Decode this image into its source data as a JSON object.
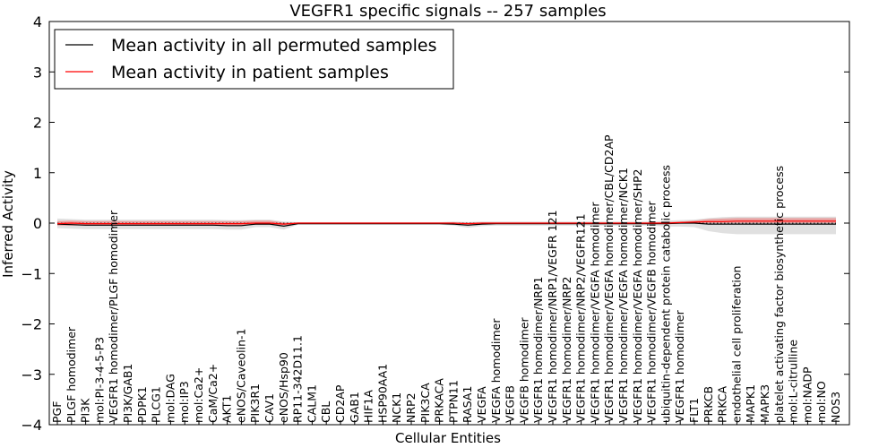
{
  "chart_data": {
    "type": "line",
    "title": "VEGFR1 specific signals -- 257 samples",
    "xlabel": "Cellular Entities",
    "ylabel": "Inferred Activity",
    "ylim": [
      -4,
      4
    ],
    "yticks": [
      -4,
      -3,
      -2,
      -1,
      0,
      1,
      2,
      3,
      4
    ],
    "legend_position": "top-left",
    "categories": [
      "PGF",
      "PLGF homodimer",
      "PI3K",
      "mol:PI-3-4-5-P3",
      "VEGFR1 homodimer/PLGF homodimer",
      "PI3K/GAB1",
      "PDPK1",
      "PLCG1",
      "mol:DAG",
      "mol:IP3",
      "mol:Ca2+",
      "CaM/Ca2+",
      "AKT1",
      "eNOS/Caveolin-1",
      "PIK3R1",
      "CAV1",
      "eNOS/Hsp90",
      "RP11-342D11.1",
      "CALM1",
      "CBL",
      "CD2AP",
      "GAB1",
      "HIF1A",
      "HSP90AA1",
      "NCK1",
      "NRP2",
      "PIK3CA",
      "PRKACA",
      "PTPN11",
      "RASA1",
      "VEGFA",
      "VEGFA homodimer",
      "VEGFB",
      "VEGFB homodimer",
      "VEGFR1 homodimer/NRP1",
      "VEGFR1 homodimer/NRP1/VEGFR 121",
      "VEGFR1 homodimer/NRP2",
      "VEGFR1 homodimer/NRP2/VEGFR121",
      "VEGFR1 homodimer/VEGFA homodimer",
      "VEGFR1 homodimer/VEGFA homodimer/CBL/CD2AP",
      "VEGFR1 homodimer/VEGFA homodimer/NCK1",
      "VEGFR1 homodimer/VEGFA homodimer/SHP2",
      "VEGFR1 homodimer/VEGFB homodimer",
      "ubiquitin-dependent protein catabolic process",
      "VEGFR1 homodimer",
      "FLT1",
      "PRKCB",
      "PRKCA",
      "endothelial cell proliferation",
      "MAPK1",
      "MAPK3",
      "platelet activating factor biosynthetic process",
      "mol:L-citrulline",
      "mol:NADP",
      "mol:NO",
      "NOS3"
    ],
    "series": [
      {
        "name": "Mean activity in all permuted samples",
        "color": "#000000",
        "values": [
          -0.02,
          -0.03,
          -0.04,
          -0.04,
          -0.04,
          -0.04,
          -0.04,
          -0.04,
          -0.04,
          -0.04,
          -0.04,
          -0.04,
          -0.05,
          -0.05,
          -0.02,
          -0.02,
          -0.06,
          -0.01,
          -0.01,
          -0.01,
          -0.01,
          -0.01,
          -0.01,
          -0.01,
          -0.01,
          -0.01,
          -0.01,
          -0.01,
          -0.02,
          -0.04,
          -0.02,
          -0.01,
          -0.01,
          -0.01,
          -0.01,
          -0.01,
          -0.01,
          -0.01,
          -0.01,
          -0.01,
          -0.01,
          -0.01,
          -0.01,
          -0.01,
          0.0,
          0.0,
          -0.02,
          -0.02,
          -0.02,
          -0.02,
          -0.02,
          -0.02,
          -0.02,
          -0.02,
          -0.02,
          -0.02
        ],
        "band_low": [
          -0.1,
          -0.11,
          -0.12,
          -0.12,
          -0.12,
          -0.12,
          -0.12,
          -0.12,
          -0.12,
          -0.12,
          -0.12,
          -0.12,
          -0.13,
          -0.13,
          -0.08,
          -0.08,
          -0.13,
          -0.03,
          -0.03,
          -0.03,
          -0.03,
          -0.03,
          -0.03,
          -0.03,
          -0.03,
          -0.03,
          -0.03,
          -0.03,
          -0.05,
          -0.09,
          -0.06,
          -0.05,
          -0.05,
          -0.05,
          -0.05,
          -0.05,
          -0.05,
          -0.05,
          -0.05,
          -0.05,
          -0.05,
          -0.05,
          -0.05,
          -0.07,
          -0.07,
          -0.08,
          -0.16,
          -0.2,
          -0.22,
          -0.22,
          -0.22,
          -0.22,
          -0.22,
          -0.22,
          -0.22,
          -0.22
        ],
        "band_high": [
          0.09,
          0.08,
          0.07,
          0.07,
          0.07,
          0.07,
          0.07,
          0.07,
          0.07,
          0.07,
          0.07,
          0.07,
          0.06,
          0.06,
          0.07,
          0.07,
          0.03,
          0.02,
          0.02,
          0.02,
          0.02,
          0.02,
          0.02,
          0.02,
          0.02,
          0.02,
          0.02,
          0.02,
          0.03,
          0.02,
          0.03,
          0.03,
          0.03,
          0.03,
          0.03,
          0.03,
          0.03,
          0.03,
          0.03,
          0.03,
          0.03,
          0.03,
          0.03,
          0.05,
          0.06,
          0.07,
          0.1,
          0.12,
          0.13,
          0.13,
          0.13,
          0.13,
          0.13,
          0.13,
          0.13,
          0.13
        ]
      },
      {
        "name": "Mean activity in patient samples",
        "color": "#ff0000",
        "values": [
          -0.01,
          0.0,
          -0.01,
          -0.01,
          -0.01,
          -0.01,
          -0.01,
          -0.01,
          -0.01,
          -0.01,
          -0.01,
          -0.01,
          -0.01,
          -0.01,
          0.0,
          0.0,
          -0.02,
          0.0,
          0.0,
          0.0,
          0.0,
          0.0,
          0.0,
          0.0,
          0.0,
          0.0,
          0.0,
          0.0,
          0.0,
          -0.01,
          0.0,
          0.0,
          0.0,
          0.0,
          0.0,
          0.0,
          0.0,
          0.0,
          0.0,
          0.0,
          0.0,
          0.0,
          0.0,
          0.0,
          0.01,
          0.02,
          0.03,
          0.03,
          0.04,
          0.04,
          0.04,
          0.04,
          0.04,
          0.04,
          0.04,
          0.04
        ],
        "band_low": [
          -0.05,
          -0.05,
          -0.05,
          -0.05,
          -0.05,
          -0.05,
          -0.05,
          -0.05,
          -0.05,
          -0.05,
          -0.05,
          -0.05,
          -0.05,
          -0.05,
          -0.03,
          -0.03,
          -0.04,
          -0.01,
          -0.01,
          -0.01,
          -0.01,
          -0.01,
          -0.01,
          -0.01,
          -0.01,
          -0.01,
          -0.01,
          -0.01,
          -0.02,
          -0.03,
          -0.02,
          -0.01,
          -0.01,
          -0.01,
          -0.01,
          -0.01,
          -0.01,
          -0.01,
          -0.01,
          -0.01,
          -0.01,
          -0.01,
          -0.01,
          -0.02,
          -0.01,
          0.0,
          0.0,
          0.0,
          0.0,
          0.0,
          0.0,
          0.0,
          0.0,
          0.0,
          0.0,
          0.0
        ],
        "band_high": [
          0.04,
          0.05,
          0.04,
          0.04,
          0.04,
          0.04,
          0.04,
          0.04,
          0.04,
          0.04,
          0.04,
          0.04,
          0.04,
          0.04,
          0.05,
          0.05,
          0.01,
          0.01,
          0.01,
          0.01,
          0.01,
          0.01,
          0.01,
          0.01,
          0.01,
          0.01,
          0.01,
          0.01,
          0.01,
          0.01,
          0.01,
          0.01,
          0.01,
          0.01,
          0.01,
          0.01,
          0.01,
          0.01,
          0.01,
          0.01,
          0.01,
          0.01,
          0.01,
          0.02,
          0.03,
          0.05,
          0.08,
          0.09,
          0.1,
          0.1,
          0.1,
          0.1,
          0.1,
          0.1,
          0.1,
          0.1
        ]
      }
    ]
  }
}
